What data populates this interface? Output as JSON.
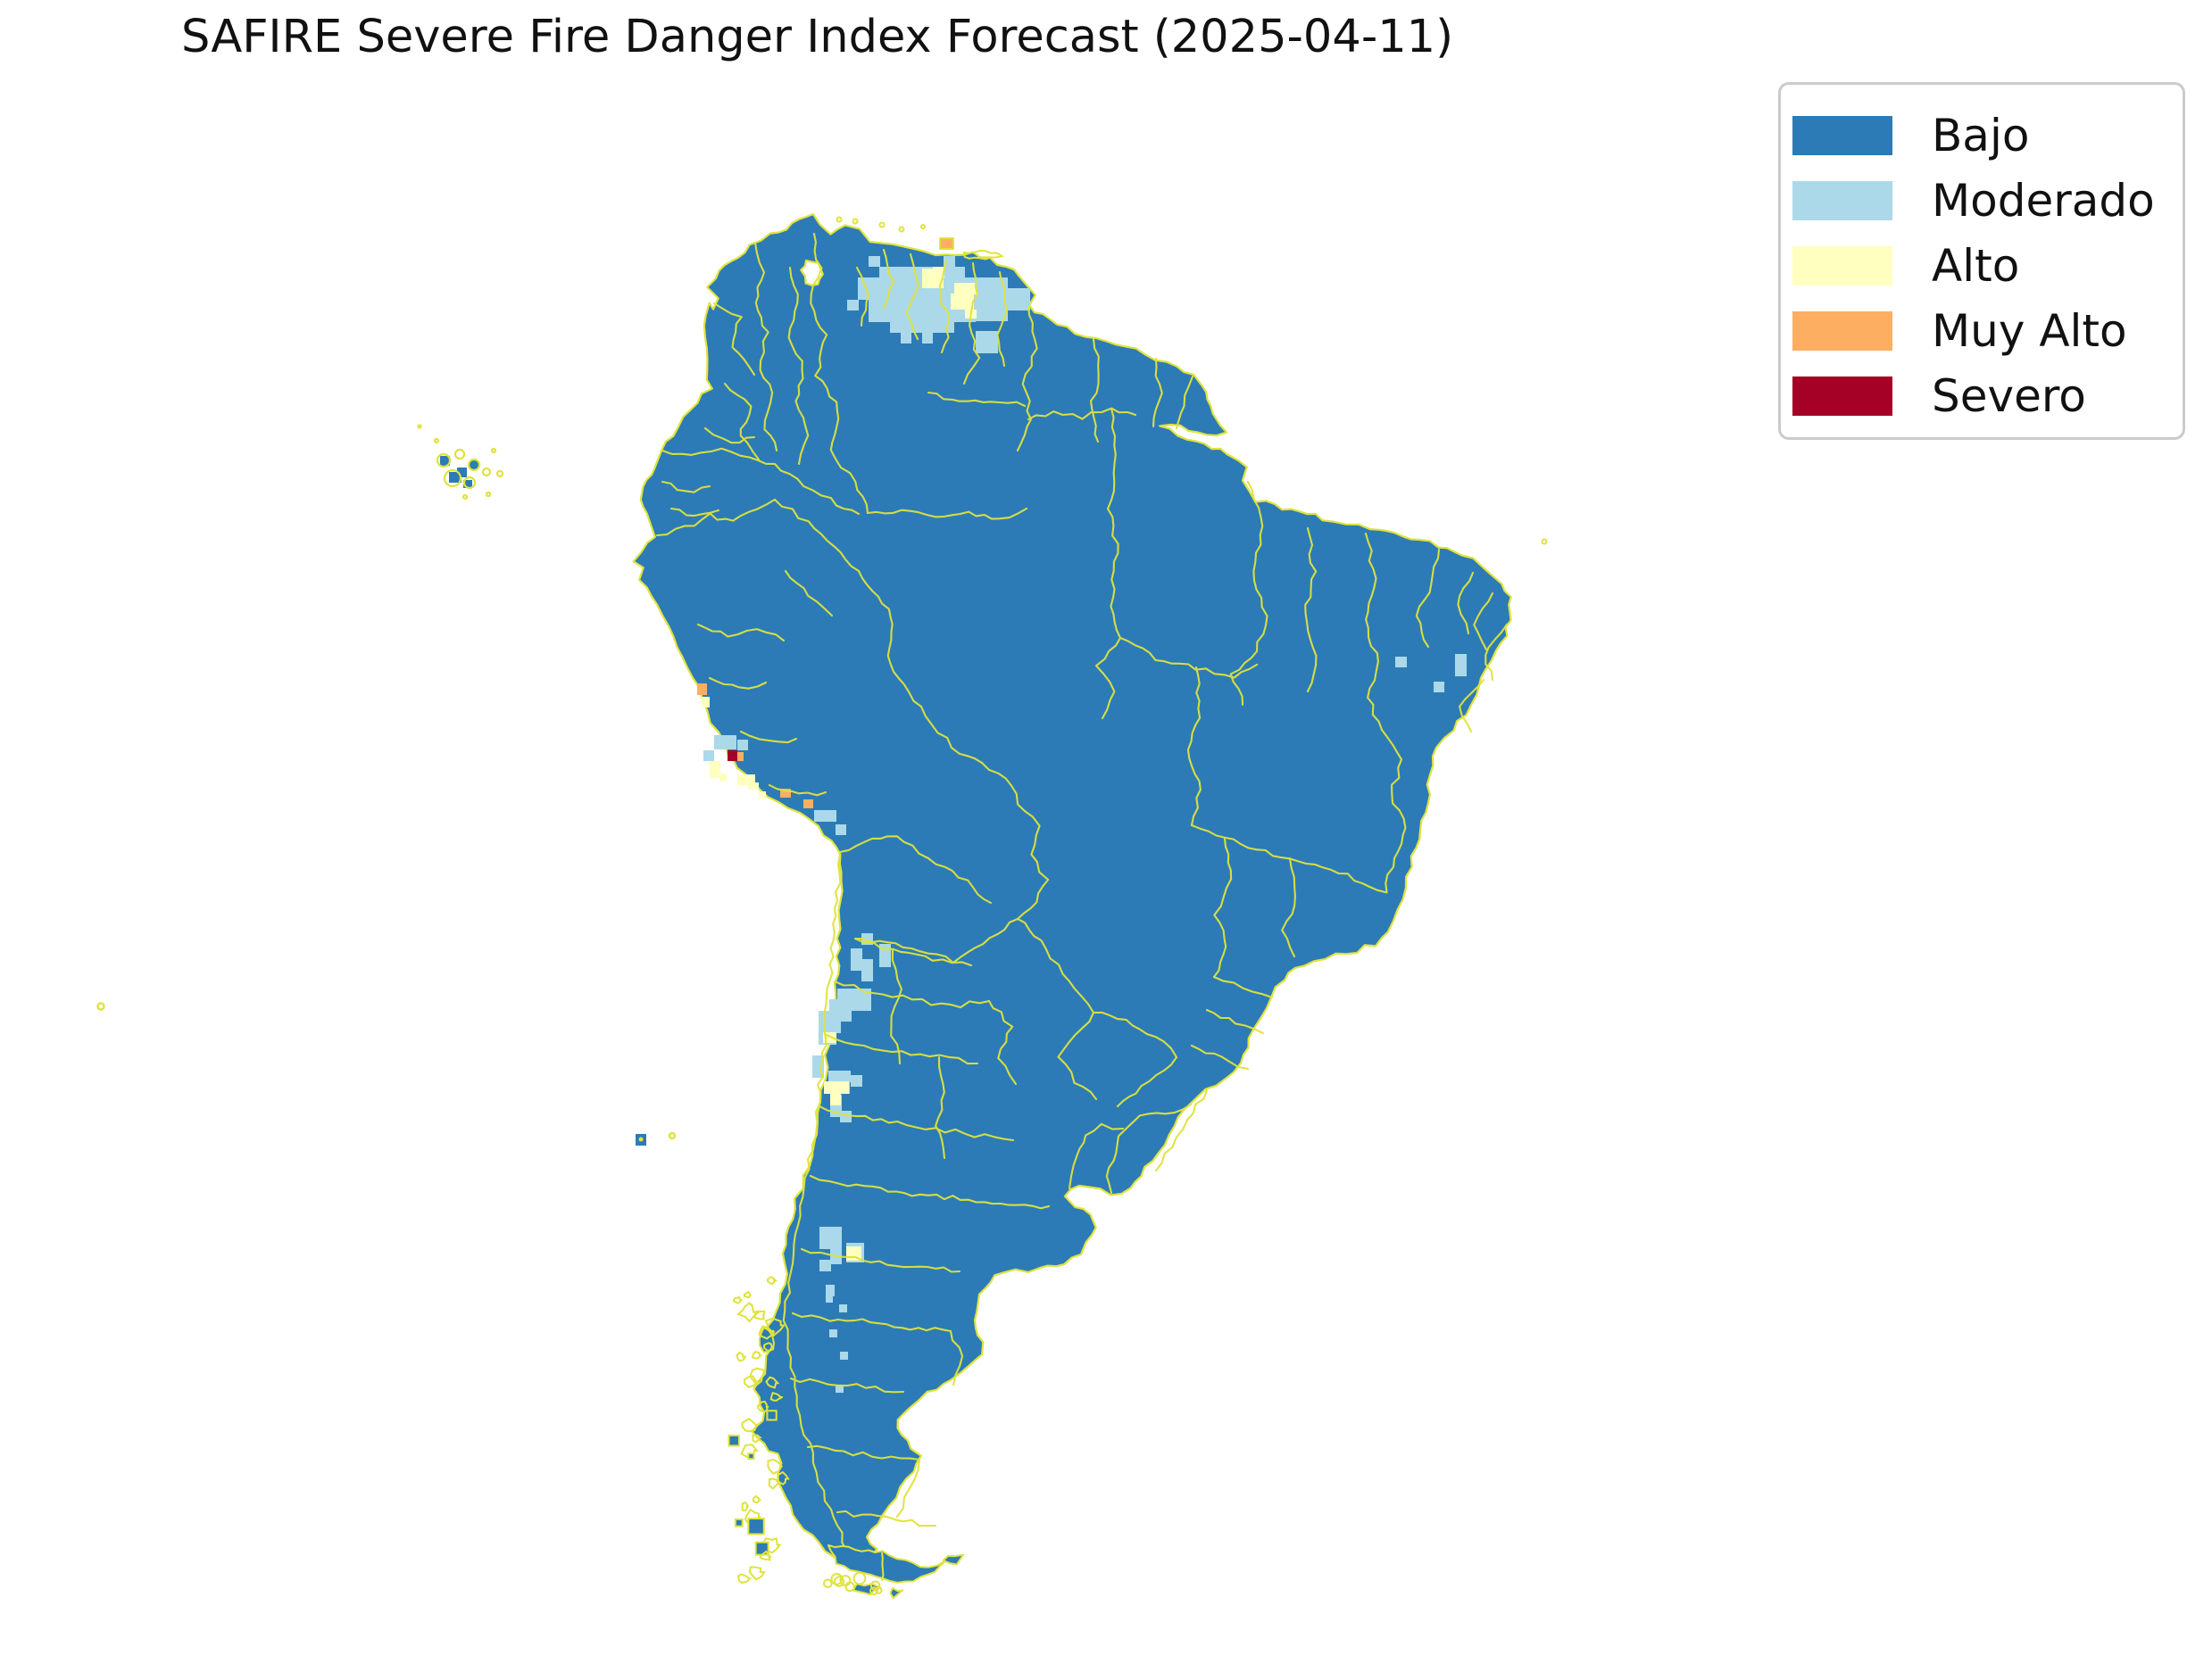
{
  "title": "SAFIRE Severe Fire Danger Index Forecast (2025-04-11)",
  "map": {
    "region": "South America",
    "date": "2025-04-11",
    "base_fill_class": "Bajo",
    "boundary_color": "#dfe33c",
    "background": "#ffffff"
  },
  "legend": {
    "items": [
      {
        "label": "Bajo",
        "color": "#2c7bb6"
      },
      {
        "label": "Moderado",
        "color": "#abd9e9"
      },
      {
        "label": "Alto",
        "color": "#ffffbf"
      },
      {
        "label": "Muy Alto",
        "color": "#fdae61"
      },
      {
        "label": "Severo",
        "color": "#a50026"
      }
    ]
  },
  "map_overlays": {
    "moderado_cells": [
      [
        973,
        287,
        13,
        12
      ],
      [
        1057,
        287,
        13,
        12
      ],
      [
        985,
        299,
        96,
        12
      ],
      [
        961,
        311,
        132,
        25
      ],
      [
        949,
        336,
        13,
        12
      ],
      [
        973,
        336,
        120,
        25
      ],
      [
        997,
        361,
        72,
        12
      ],
      [
        1093,
        311,
        36,
        49
      ],
      [
        1129,
        323,
        25,
        13
      ],
      [
        1117,
        336,
        37,
        12
      ],
      [
        1093,
        371,
        25,
        25
      ],
      [
        1033,
        373,
        12,
        12
      ],
      [
        1141,
        336,
        12,
        12
      ],
      [
        1009,
        373,
        12,
        12
      ],
      [
        965,
        1046,
        13,
        13
      ],
      [
        985,
        1058,
        13,
        26
      ],
      [
        953,
        1063,
        13,
        25
      ],
      [
        965,
        1075,
        13,
        25
      ],
      [
        938,
        1108,
        38,
        25
      ],
      [
        929,
        1120,
        25,
        25
      ],
      [
        917,
        1133,
        25,
        25
      ],
      [
        929,
        1145,
        13,
        13
      ],
      [
        917,
        1158,
        20,
        13
      ],
      [
        910,
        1183,
        13,
        25
      ],
      [
        928,
        1200,
        25,
        13
      ],
      [
        923,
        1213,
        29,
        13
      ],
      [
        930,
        1227,
        13,
        25
      ],
      [
        941,
        1245,
        13,
        13
      ],
      [
        953,
        1205,
        13,
        13
      ],
      [
        918,
        1375,
        25,
        25
      ],
      [
        930,
        1387,
        13,
        30
      ],
      [
        918,
        1412,
        13,
        13
      ],
      [
        948,
        1393,
        20,
        22
      ],
      [
        925,
        1440,
        10,
        13
      ],
      [
        925,
        1452,
        8,
        8
      ],
      [
        940,
        1462,
        9,
        9
      ],
      [
        929,
        1490,
        9,
        9
      ],
      [
        941,
        1515,
        9,
        9
      ],
      [
        936,
        1552,
        9,
        9
      ],
      [
        800,
        824,
        25,
        16
      ],
      [
        788,
        841,
        12,
        12
      ],
      [
        826,
        829,
        12,
        12
      ],
      [
        912,
        908,
        25,
        13
      ],
      [
        936,
        924,
        12,
        12
      ],
      [
        1630,
        733,
        13,
        25
      ],
      [
        1606,
        764,
        12,
        12
      ],
      [
        1563,
        736,
        13,
        12
      ]
    ],
    "alto_cells": [
      [
        1033,
        301,
        13,
        11
      ],
      [
        1045,
        299,
        13,
        13
      ],
      [
        1033,
        311,
        24,
        12
      ],
      [
        1069,
        317,
        25,
        13
      ],
      [
        1065,
        329,
        26,
        18
      ],
      [
        1081,
        347,
        13,
        10
      ],
      [
        922,
        1157,
        15,
        12
      ],
      [
        923,
        1212,
        28,
        14
      ],
      [
        930,
        1225,
        12,
        14
      ],
      [
        948,
        1397,
        17,
        16
      ],
      [
        795,
        853,
        12,
        19
      ],
      [
        806,
        867,
        8,
        9
      ],
      [
        826,
        868,
        20,
        12
      ],
      [
        838,
        877,
        12,
        8
      ],
      [
        786,
        781,
        9,
        12
      ],
      [
        850,
        887,
        8,
        8
      ]
    ],
    "muy_alto_cells": [
      [
        781,
        766,
        11,
        13
      ],
      [
        825,
        843,
        8,
        10
      ],
      [
        874,
        884,
        12,
        10
      ],
      [
        900,
        896,
        11,
        10
      ],
      [
        1053,
        267,
        15,
        12
      ]
    ],
    "severo_cells": [
      [
        815,
        841,
        11,
        12
      ]
    ]
  }
}
